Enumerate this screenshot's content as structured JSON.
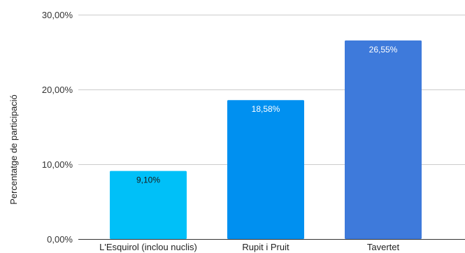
{
  "chart_data": {
    "type": "bar",
    "categories": [
      "L'Esquirol (inclou nuclis)",
      "Rupit i Pruit",
      "Tavertet"
    ],
    "values": [
      9.1,
      18.58,
      26.55
    ],
    "data_labels": [
      "9,10%",
      "18,58%",
      "26,55%"
    ],
    "bar_colors": [
      "#00c0f8",
      "#0090f0",
      "#3e7adb"
    ],
    "label_colors": [
      "#1a1a1a",
      "#ffffff",
      "#ffffff"
    ],
    "title": "",
    "xlabel": "",
    "ylabel": "Percentatge de participació",
    "ylim": [
      0,
      30
    ],
    "yticks": [
      0,
      10,
      20,
      30
    ],
    "ytick_labels": [
      "0,00%",
      "10,00%",
      "20,00%",
      "30,00%"
    ],
    "grid": true
  }
}
